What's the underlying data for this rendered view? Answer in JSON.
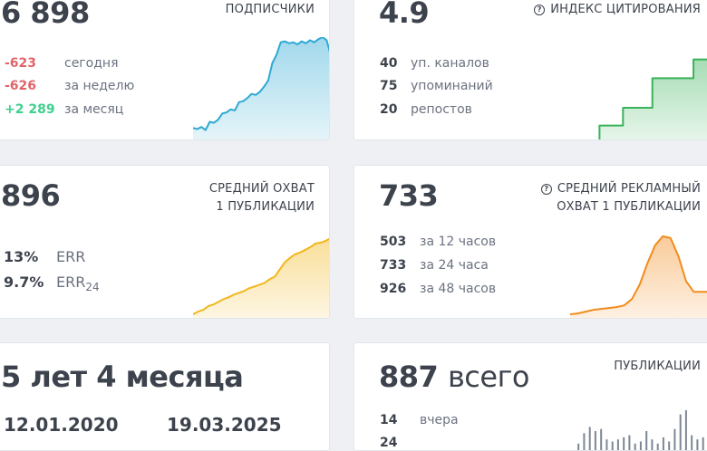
{
  "subscribers": {
    "value": "6 898",
    "title": "ПОДПИСЧИКИ",
    "stats": [
      {
        "value": "-623",
        "label": "сегодня",
        "tone": "negative"
      },
      {
        "value": "-626",
        "label": "за неделю",
        "tone": "negative"
      },
      {
        "value": "+2 289",
        "label": "за месяц",
        "tone": "positive"
      }
    ],
    "trend": [
      0.12,
      0.11,
      0.13,
      0.1,
      0.18,
      0.17,
      0.2,
      0.26,
      0.27,
      0.3,
      0.29,
      0.37,
      0.38,
      0.41,
      0.45,
      0.44,
      0.47,
      0.52,
      0.58,
      0.75,
      0.83,
      0.95,
      0.96,
      0.94,
      0.95,
      0.93,
      0.96,
      0.94,
      0.97,
      0.95,
      0.98,
      1.0,
      0.97,
      0.82
    ]
  },
  "citation": {
    "value": "4.9",
    "title": "ИНДЕКС ЦИТИРОВАНИЯ",
    "stats": [
      {
        "value": "40",
        "label": "уп. каналов"
      },
      {
        "value": "75",
        "label": "упоминаний"
      },
      {
        "value": "20",
        "label": "репостов"
      }
    ],
    "trend": [
      0.0,
      0.0,
      0.0,
      0.0,
      0.0,
      0.15,
      0.15,
      0.15,
      0.15,
      0.33,
      0.33,
      0.33,
      0.33,
      0.33,
      0.63,
      0.63,
      0.63,
      0.63,
      0.63,
      0.63,
      0.63,
      0.82,
      0.82,
      0.82,
      0.82,
      0.82
    ]
  },
  "avg_reach": {
    "value": "896",
    "title_lines": [
      "СРЕДНИЙ ОХВАТ",
      "1 ПУБЛИКАЦИИ"
    ],
    "stats": [
      {
        "value": "13%",
        "label": "ERR"
      },
      {
        "value": "9.7%",
        "label": "ERR",
        "sub": "24"
      }
    ],
    "trend": [
      0.05,
      0.08,
      0.1,
      0.14,
      0.16,
      0.19,
      0.22,
      0.24,
      0.27,
      0.29,
      0.31,
      0.34,
      0.36,
      0.38,
      0.4,
      0.44,
      0.47,
      0.55,
      0.63,
      0.68,
      0.72,
      0.74,
      0.77,
      0.8,
      0.84,
      0.85,
      0.87,
      0.9
    ]
  },
  "ad_reach": {
    "value": "733",
    "title_lines": [
      "СРЕДНИЙ РЕКЛАМНЫЙ",
      "ОХВАТ 1 ПУБЛИКАЦИИ"
    ],
    "stats": [
      {
        "value": "503",
        "label": "за 12 часов"
      },
      {
        "value": "733",
        "label": "за 24 часа"
      },
      {
        "value": "926",
        "label": "за 48 часов"
      }
    ],
    "trend": [
      0.05,
      0.06,
      0.08,
      0.1,
      0.11,
      0.12,
      0.13,
      0.15,
      0.22,
      0.38,
      0.62,
      0.82,
      0.92,
      0.9,
      0.7,
      0.42,
      0.3,
      0.3,
      0.3,
      0.3
    ]
  },
  "age": {
    "value": "5 лет 4 месяца",
    "dates": [
      "12.01.2020",
      "19.03.2025"
    ]
  },
  "posts": {
    "value": "887",
    "unit": "всего",
    "title": "ПУБЛИКАЦИИ",
    "stats": [
      {
        "value": "14",
        "label": "вчера"
      },
      {
        "value": "24",
        "label": ""
      }
    ],
    "bars": [
      0.2,
      0.45,
      0.6,
      0.5,
      0.55,
      0.3,
      0.25,
      0.3,
      0.35,
      0.4,
      0.2,
      0.25,
      0.5,
      0.3,
      0.2,
      0.35,
      0.25,
      0.55,
      0.9,
      1.0,
      0.4,
      0.3,
      0.35,
      0.2
    ]
  },
  "colors": {
    "text": "#3d434d",
    "muted": "#6b7280",
    "negative": "#e0656b",
    "positive": "#3fcf8e",
    "subscribers_line": "#2ea9d3",
    "citation_line": "#3ab25a",
    "reach_line": "#f2b71c",
    "ad_line": "#f28c1e",
    "bar": "#7d8794"
  }
}
